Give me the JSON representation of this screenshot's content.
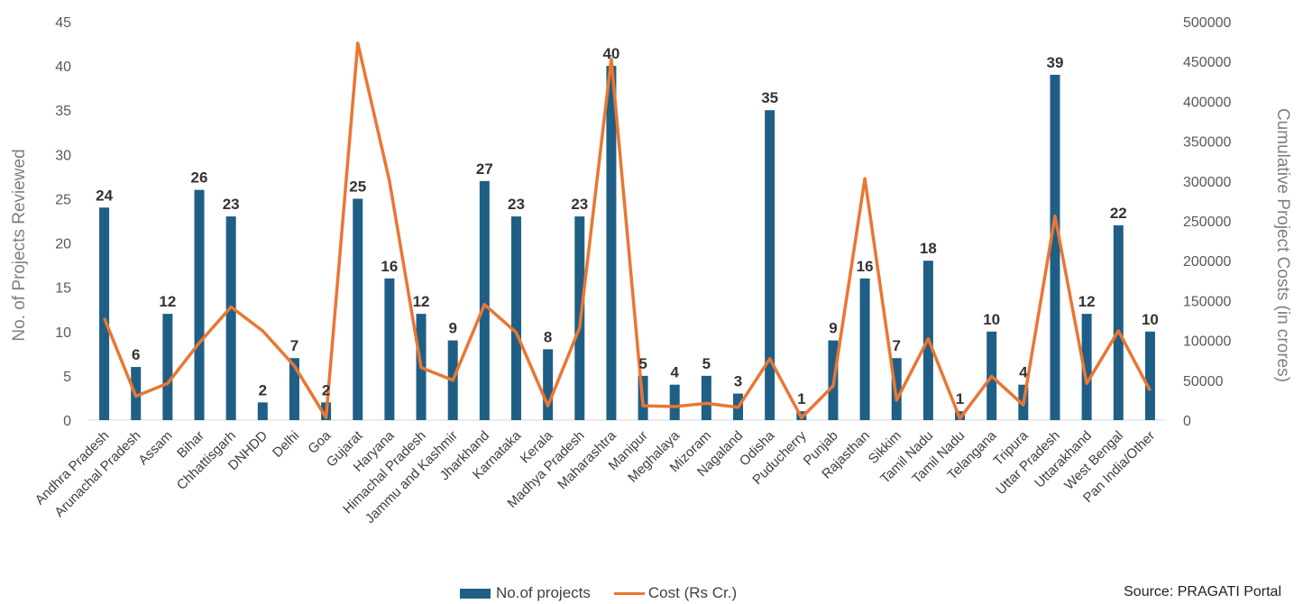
{
  "chart_data": {
    "type": "bar",
    "categories": [
      "Andhra Pradesh",
      "Arunachal Pradesh",
      "Assam",
      "Bihar",
      "Chhattisgarh",
      "DNHDD",
      "Delhi",
      "Goa",
      "Gujarat",
      "Haryana",
      "Himachal Pradesh",
      "Jammu and Kashmir",
      "Jharkhand",
      "Karnataka",
      "Kerala",
      "Madhya Pradesh",
      "Maharashtra",
      "Manipur",
      "Meghalaya",
      "Mizoram",
      "Nagaland",
      "Odisha",
      "Puducherry",
      "Punjab",
      "Rajasthan",
      "Sikkim",
      "Tamil Nadu",
      "Tamil Nadu",
      "Telangana",
      "Tripura",
      "Uttar Pradesh",
      "Uttarakhand",
      "West Bengal",
      "Pan India/Other"
    ],
    "series": [
      {
        "name": "No.of projects",
        "type": "bar",
        "axis": "left",
        "color": "#1f5f86",
        "values": [
          24,
          6,
          12,
          26,
          23,
          2,
          7,
          2,
          25,
          16,
          12,
          9,
          27,
          23,
          8,
          23,
          40,
          5,
          4,
          5,
          3,
          35,
          1,
          9,
          16,
          7,
          18,
          1,
          10,
          4,
          39,
          12,
          22,
          10
        ]
      },
      {
        "name": "Cost (Rs Cr.)",
        "type": "line",
        "axis": "right",
        "color": "#ea7632",
        "values": [
          128000,
          30000,
          46000,
          97000,
          142000,
          112000,
          68000,
          3000,
          473000,
          300000,
          66000,
          50000,
          145000,
          110000,
          18000,
          116000,
          453000,
          18000,
          17000,
          21000,
          16000,
          77000,
          3000,
          43000,
          303000,
          25000,
          102000,
          2000,
          55000,
          19000,
          256000,
          46000,
          112000,
          37000
        ]
      }
    ],
    "ylabel": "No. of Projects Reviewed",
    "y2label": "Cumulative Project Costs (in crores)",
    "ylim": [
      0,
      45
    ],
    "y2lim": [
      0,
      500000
    ],
    "yticks": [
      0,
      5,
      10,
      15,
      20,
      25,
      30,
      35,
      40,
      45
    ],
    "y2ticks": [
      0,
      50000,
      100000,
      150000,
      200000,
      250000,
      300000,
      350000,
      400000,
      450000,
      500000
    ],
    "grid": false,
    "legend_position": "bottom"
  },
  "legend": {
    "bar_label": "No.of projects",
    "line_label": "Cost (Rs Cr.)"
  },
  "source": "Source: PRAGATI Portal"
}
